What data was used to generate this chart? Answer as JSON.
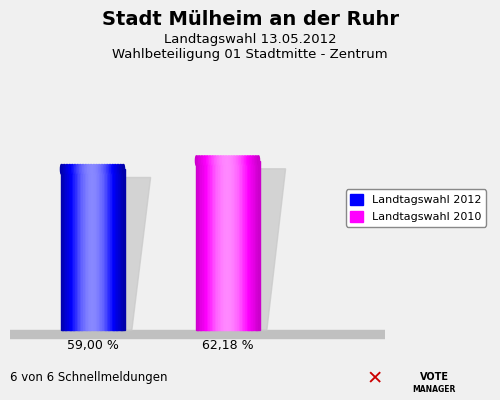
{
  "title": "Stadt Mülheim an der Ruhr",
  "subtitle1": "Landtagswahl 13.05.2012",
  "subtitle2": "Wahlbeteiligung 01 Stadtmitte - Zentrum",
  "values": [
    59.0,
    62.18
  ],
  "labels": [
    "59,00 %",
    "62,18 %"
  ],
  "bar_colors_main": [
    "#0000ff",
    "#ff00ff"
  ],
  "bar_colors_light": [
    "#8888ff",
    "#ff88ff"
  ],
  "bar_colors_dark": [
    "#0000aa",
    "#cc00cc"
  ],
  "shadow_color": "#c8c8c8",
  "floor_color": "#c0c0c0",
  "background_color": "#f0f0f0",
  "legend_labels": [
    "Landtagswahl 2012",
    "Landtagswahl 2010"
  ],
  "footer": "6 von 6 Schnellmeldungen",
  "title_fontsize": 14,
  "subtitle_fontsize": 9.5,
  "label_fontsize": 9,
  "footer_fontsize": 8.5,
  "legend_fontsize": 8
}
